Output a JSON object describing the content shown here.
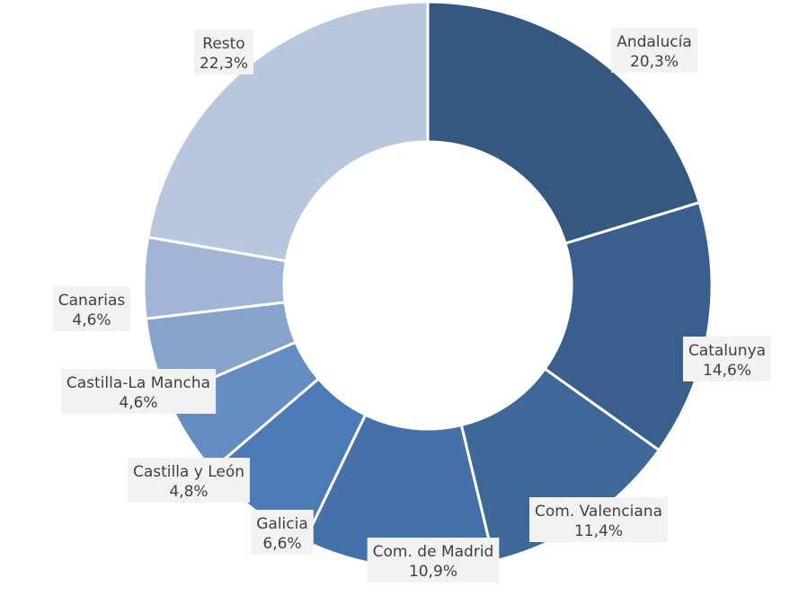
{
  "chart_data": {
    "type": "pie",
    "donut": true,
    "title": "",
    "slices": [
      {
        "name": "Andalucía",
        "value": 20.3,
        "label": "20,3%",
        "color": "#34587f"
      },
      {
        "name": "Catalunya",
        "value": 14.6,
        "label": "14,6%",
        "color": "#3a5f8e"
      },
      {
        "name": "Com. Valenciana",
        "value": 11.4,
        "label": "11,4%",
        "color": "#3e679a"
      },
      {
        "name": "Com. de Madrid",
        "value": 10.9,
        "label": "10,9%",
        "color": "#4571a8"
      },
      {
        "name": "Galicia",
        "value": 6.6,
        "label": "6,6%",
        "color": "#4a7bb7"
      },
      {
        "name": "Castilla y León",
        "value": 4.8,
        "label": "4,8%",
        "color": "#648dc4"
      },
      {
        "name": "Castilla-La Mancha",
        "value": 4.6,
        "label": "4,6%",
        "color": "#87a2cb"
      },
      {
        "name": "Canarias",
        "value": 4.6,
        "label": "4,6%",
        "color": "#a2b5d6"
      },
      {
        "name": "Resto",
        "value": 22.3,
        "label": "22,3%",
        "color": "#b8c6de"
      }
    ]
  }
}
